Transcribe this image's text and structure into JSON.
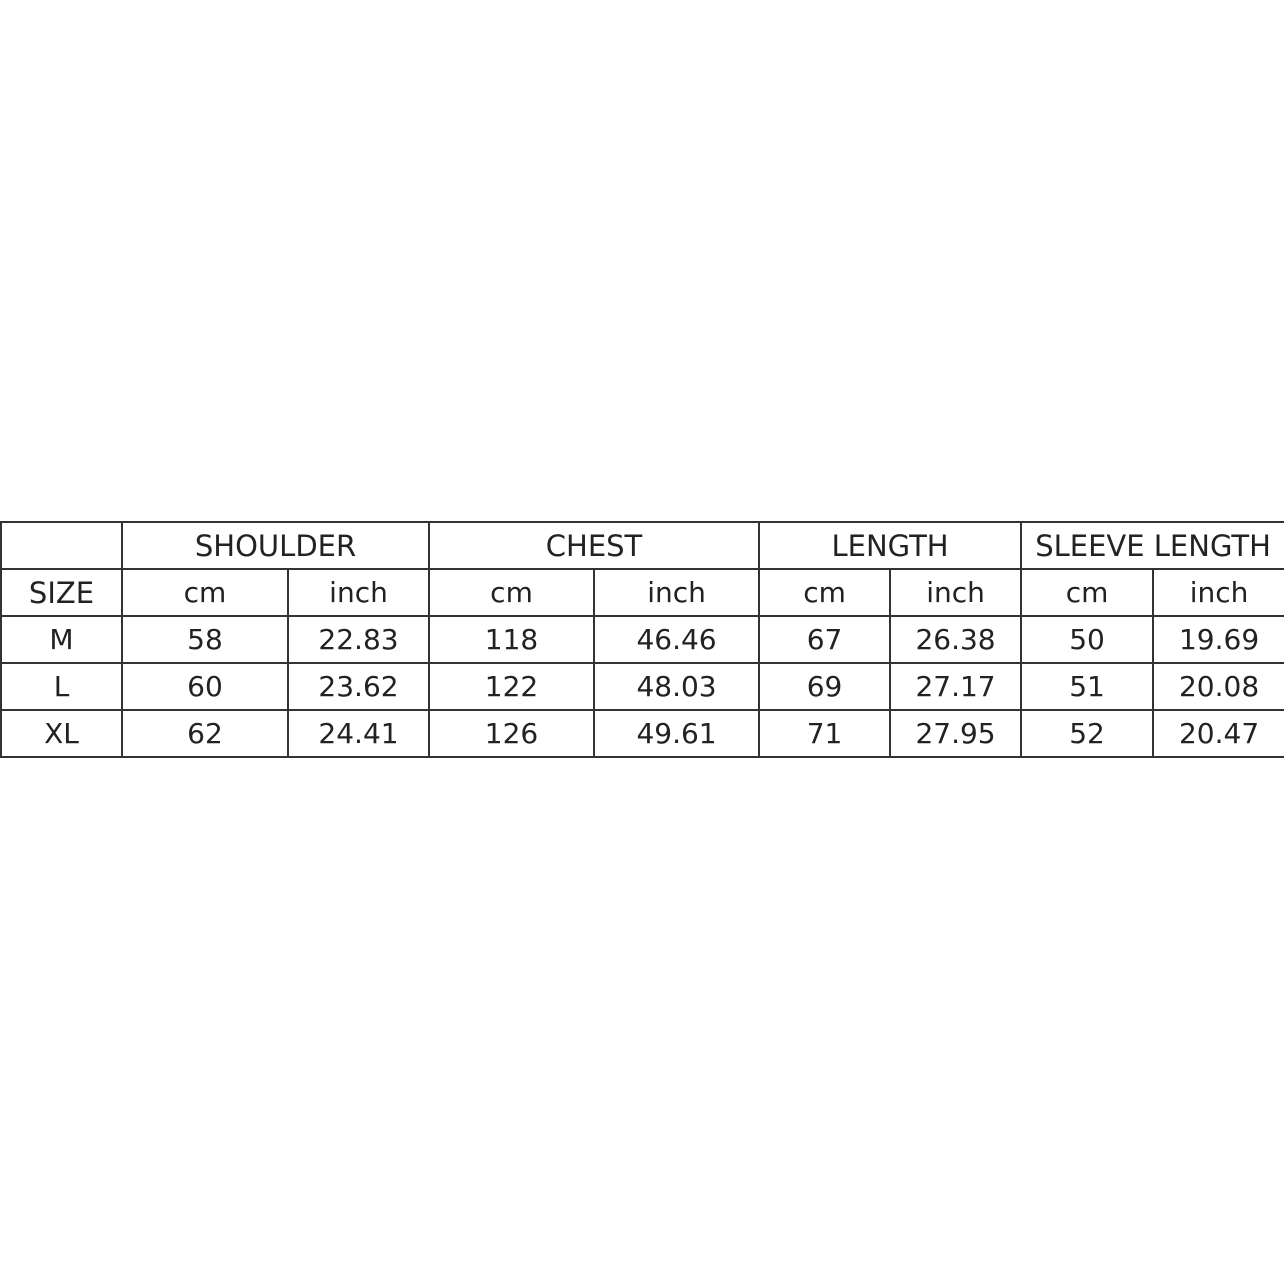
{
  "headers": {
    "groups": [
      "SHOULDER",
      "CHEST",
      "LENGTH",
      "SLEEVE LENGTH"
    ],
    "size_label": "SIZE",
    "units": [
      "cm",
      "inch",
      "cm",
      "inch",
      "cm",
      "inch",
      "cm",
      "inch"
    ]
  },
  "rows": [
    {
      "size": "M",
      "values": [
        "58",
        "22.83",
        "118",
        "46.46",
        "67",
        "26.38",
        "50",
        "19.69"
      ]
    },
    {
      "size": "L",
      "values": [
        "60",
        "23.62",
        "122",
        "48.03",
        "69",
        "27.17",
        "51",
        "20.08"
      ]
    },
    {
      "size": "XL",
      "values": [
        "62",
        "24.41",
        "126",
        "49.61",
        "71",
        "27.95",
        "52",
        "20.47"
      ]
    }
  ]
}
